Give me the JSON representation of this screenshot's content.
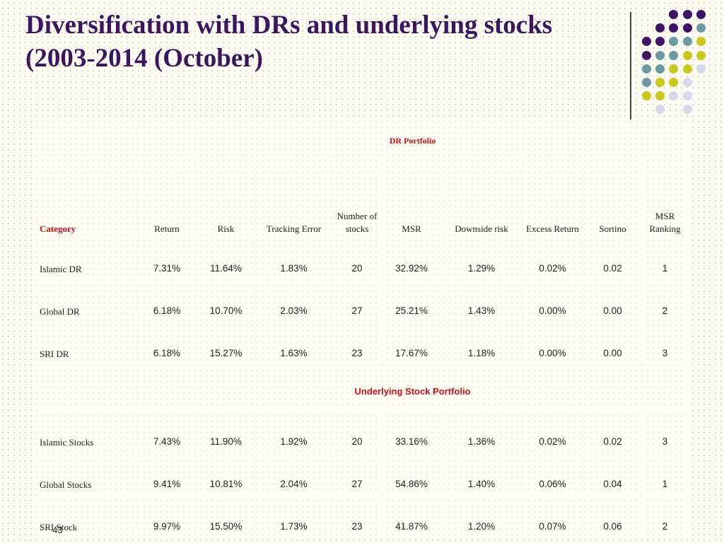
{
  "title": {
    "line1": "Diversification with DRs and underlying stocks",
    "line2": "(2003-2014 (October)"
  },
  "colors": {
    "title": "#3b1560",
    "dot_purple": "#3d1466",
    "dot_teal": "#6a9ba0",
    "dot_olive": "#c8c81e",
    "dot_lavender": "#d8d8ec",
    "section_label": "#cc1111"
  },
  "decor": {
    "dot_rows": [
      [
        "",
        "",
        "purple",
        "purple",
        "purple"
      ],
      [
        "",
        "purple",
        "purple",
        "purple",
        "teal"
      ],
      [
        "purple",
        "purple",
        "teal",
        "teal",
        "olive"
      ],
      [
        "purple",
        "teal",
        "teal",
        "olive",
        "olive"
      ],
      [
        "teal",
        "teal",
        "olive",
        "olive",
        "lavender"
      ],
      [
        "teal",
        "olive",
        "olive",
        "lavender",
        ""
      ],
      [
        "olive",
        "olive",
        "lavender",
        "lavender",
        ""
      ],
      [
        "",
        "lavender",
        "",
        "lavender",
        ""
      ]
    ]
  },
  "table": {
    "section_dr": "DR Portfolio",
    "section_stock": "Underlying Stock Portfolio",
    "headers": {
      "category": "Category",
      "return": "Return",
      "risk": "Risk",
      "tracking_error": "Tracking Error",
      "number_of_stocks_1": "Number of",
      "number_of_stocks_2": "stocks",
      "msr": "MSR",
      "downside_risk": "Downside risk",
      "excess_return": "Excess Return",
      "sortino": "Sortino",
      "msr_ranking_1": "MSR",
      "msr_ranking_2": "Ranking"
    },
    "dr_rows": [
      {
        "category": "Islamic DR",
        "return": "7.31%",
        "risk": "11.64%",
        "tracking_error": "1.83%",
        "stocks": "20",
        "msr": "32.92%",
        "downside_risk": "1.29%",
        "excess_return": "0.02%",
        "sortino": "0.02",
        "msr_ranking": "1"
      },
      {
        "category": "Global DR",
        "return": "6.18%",
        "risk": "10.70%",
        "tracking_error": "2.03%",
        "stocks": "27",
        "msr": "25.21%",
        "downside_risk": "1.43%",
        "excess_return": "0.00%",
        "sortino": "0.00",
        "msr_ranking": "2"
      },
      {
        "category": "SRI DR",
        "return": "6.18%",
        "risk": "15.27%",
        "tracking_error": "1.63%",
        "stocks": "23",
        "msr": "17.67%",
        "downside_risk": "1.18%",
        "excess_return": "0.00%",
        "sortino": "0.00",
        "msr_ranking": "3"
      }
    ],
    "stock_rows": [
      {
        "category": "Islamic Stocks",
        "return": "7.43%",
        "risk": "11.90%",
        "tracking_error": "1.92%",
        "stocks": "20",
        "msr": "33.16%",
        "downside_risk": "1.36%",
        "excess_return": "0.02%",
        "sortino": "0.02",
        "msr_ranking": "3"
      },
      {
        "category": "Global Stocks",
        "return": "9.41%",
        "risk": "10.81%",
        "tracking_error": "2.04%",
        "stocks": "27",
        "msr": "54.86%",
        "downside_risk": "1.40%",
        "excess_return": "0.06%",
        "sortino": "0.04",
        "msr_ranking": "1"
      },
      {
        "category": "SRI Stock",
        "return": "9.97%",
        "risk": "15.50%",
        "tracking_error": "1.73%",
        "stocks": "23",
        "msr": "41.87%",
        "downside_risk": "1.20%",
        "excess_return": "0.07%",
        "sortino": "0.06",
        "msr_ranking": "2"
      }
    ]
  },
  "slide_number": "43"
}
